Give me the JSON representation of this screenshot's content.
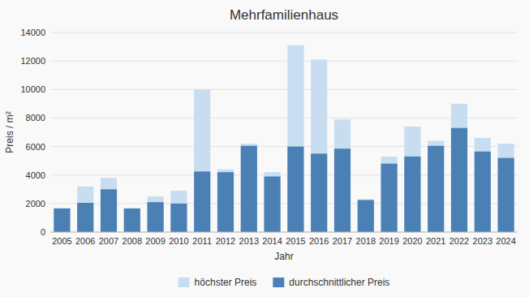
{
  "chart_data": {
    "type": "bar",
    "title": "Mehrfamilienhaus",
    "x_label": "Jahr",
    "y_label": "Preis / m²",
    "categories": [
      "2005",
      "2006",
      "2007",
      "2008",
      "2009",
      "2010",
      "2011",
      "2012",
      "2013",
      "2014",
      "2015",
      "2016",
      "2017",
      "2018",
      "2019",
      "2020",
      "2021",
      "2022",
      "2023",
      "2024"
    ],
    "series": [
      {
        "name": "höchster Preis",
        "color": "#c8ddf0",
        "values": [
          1700,
          3200,
          3800,
          1700,
          2500,
          2900,
          10000,
          4400,
          6200,
          4200,
          13100,
          12100,
          7900,
          2300,
          5300,
          7400,
          6400,
          9000,
          6600,
          6200
        ]
      },
      {
        "name": "durchschnittlicher Preis",
        "color": "#4b80b5",
        "values": [
          1650,
          2050,
          3000,
          1650,
          2100,
          2000,
          4250,
          4200,
          6050,
          3900,
          6000,
          5500,
          5850,
          2250,
          4800,
          5300,
          6050,
          7300,
          5650,
          5200
        ]
      }
    ],
    "stacked": false,
    "ylim": [
      0,
      14000
    ],
    "yticks": [
      0,
      2000,
      4000,
      6000,
      8000,
      10000,
      12000,
      14000
    ],
    "grid": true,
    "legend": "bottom"
  }
}
